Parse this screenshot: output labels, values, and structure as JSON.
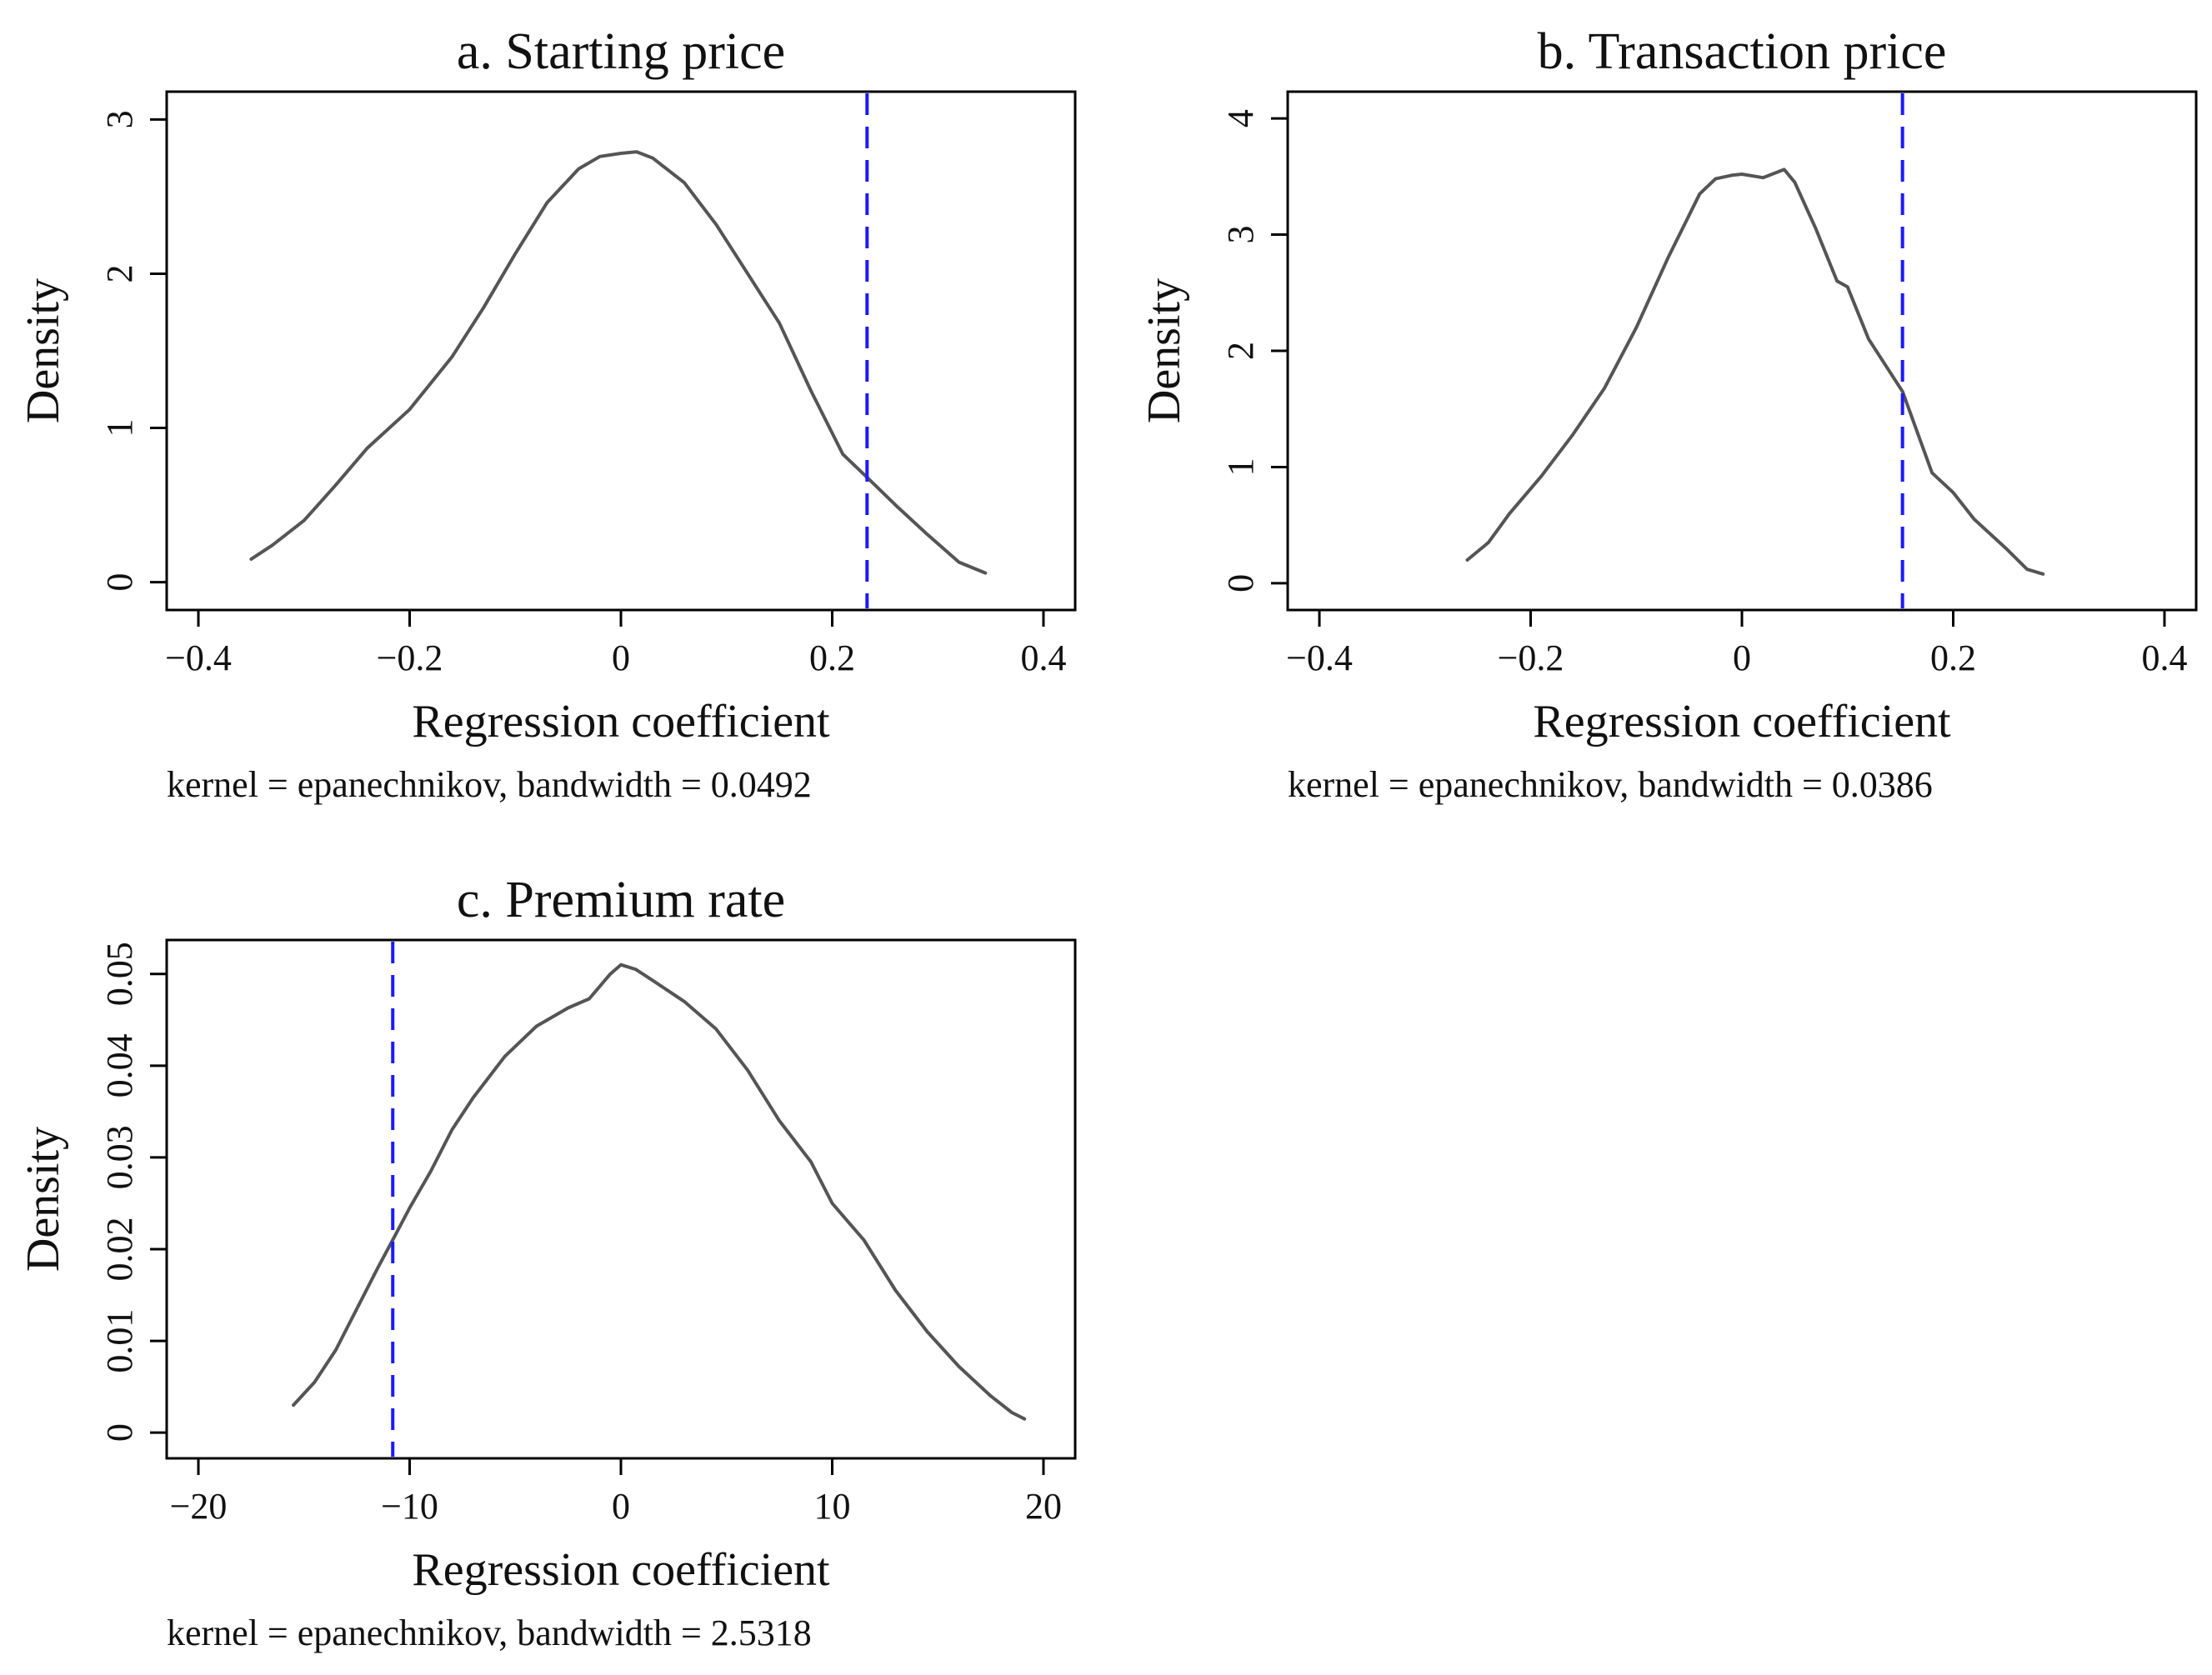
{
  "chart_data": [
    {
      "type": "line",
      "title": "a. Starting price",
      "xlabel": "Regression coefficient",
      "ylabel": "Density",
      "note": "kernel = epanechnikov, bandwidth = 0.0492",
      "xlim": [
        -0.43,
        0.43
      ],
      "ylim": [
        -0.18,
        3.18
      ],
      "xticks": [
        -0.4,
        -0.2,
        0,
        0.2,
        0.4
      ],
      "xtick_labels": [
        "−0.4",
        "−0.2",
        "0",
        "0.2",
        "0.4"
      ],
      "yticks": [
        0,
        1,
        2,
        3
      ],
      "ytick_labels": [
        "0",
        "1",
        "2",
        "3"
      ],
      "reference_line": {
        "x": 0.233,
        "color": "#1a1aff",
        "style": "dashed"
      },
      "series": [
        {
          "name": "density",
          "color": "#555555",
          "x": [
            -0.35,
            -0.33,
            -0.3,
            -0.27,
            -0.24,
            -0.2,
            -0.16,
            -0.13,
            -0.1,
            -0.07,
            -0.04,
            -0.02,
            0.0,
            0.015,
            0.03,
            0.06,
            0.09,
            0.12,
            0.15,
            0.18,
            0.21,
            0.233,
            0.26,
            0.29,
            0.32,
            0.345
          ],
          "y": [
            0.15,
            0.24,
            0.4,
            0.63,
            0.87,
            1.12,
            1.46,
            1.78,
            2.13,
            2.46,
            2.68,
            2.76,
            2.78,
            2.79,
            2.75,
            2.59,
            2.32,
            2.0,
            1.68,
            1.24,
            0.83,
            0.68,
            0.5,
            0.31,
            0.13,
            0.06
          ]
        }
      ]
    },
    {
      "type": "line",
      "title": "b. Transaction price",
      "xlabel": "Regression coefficient",
      "ylabel": "Density",
      "note": "kernel = epanechnikov, bandwidth = 0.0386",
      "xlim": [
        -0.43,
        0.43
      ],
      "ylim": [
        -0.23,
        4.23
      ],
      "xticks": [
        -0.4,
        -0.2,
        0,
        0.2,
        0.4
      ],
      "xtick_labels": [
        "−0.4",
        "−0.2",
        "0",
        "0.2",
        "0.4"
      ],
      "yticks": [
        0,
        1,
        2,
        3,
        4
      ],
      "ytick_labels": [
        "0",
        "1",
        "2",
        "3",
        "4"
      ],
      "reference_line": {
        "x": 0.152,
        "color": "#1a1aff",
        "style": "dashed"
      },
      "series": [
        {
          "name": "density",
          "color": "#555555",
          "x": [
            -0.26,
            -0.24,
            -0.22,
            -0.19,
            -0.16,
            -0.13,
            -0.1,
            -0.07,
            -0.04,
            -0.025,
            -0.01,
            0.0,
            0.02,
            0.04,
            0.05,
            0.07,
            0.09,
            0.1,
            0.12,
            0.152,
            0.18,
            0.2,
            0.22,
            0.25,
            0.27,
            0.285
          ],
          "y": [
            0.2,
            0.35,
            0.6,
            0.92,
            1.28,
            1.68,
            2.2,
            2.8,
            3.35,
            3.48,
            3.51,
            3.52,
            3.49,
            3.56,
            3.45,
            3.05,
            2.6,
            2.55,
            2.1,
            1.65,
            0.95,
            0.78,
            0.55,
            0.3,
            0.12,
            0.08
          ]
        }
      ]
    },
    {
      "type": "line",
      "title": "c. Premium rate",
      "xlabel": "Regression coefficient",
      "ylabel": "Density",
      "note": "kernel = epanechnikov, bandwidth = 2.5318",
      "xlim": [
        -21.5,
        21.5
      ],
      "ylim": [
        -0.0028,
        0.0537
      ],
      "xticks": [
        -20,
        -10,
        0,
        10,
        20
      ],
      "xtick_labels": [
        "−20",
        "−10",
        "0",
        "10",
        "20"
      ],
      "yticks": [
        0,
        0.01,
        0.02,
        0.03,
        0.04,
        0.05
      ],
      "ytick_labels": [
        "0",
        "0.01",
        "0.02",
        "0.03",
        "0.04",
        "0.05"
      ],
      "reference_line": {
        "x": -10.8,
        "color": "#1a1aff",
        "style": "dashed"
      },
      "series": [
        {
          "name": "density",
          "color": "#555555",
          "x": [
            -15.5,
            -14.5,
            -13.5,
            -12.5,
            -11.5,
            -10.8,
            -10.0,
            -9.0,
            -8.0,
            -7.0,
            -5.5,
            -4.0,
            -2.5,
            -1.5,
            -0.5,
            0.0,
            0.7,
            1.5,
            3.0,
            4.5,
            6.0,
            7.5,
            9.0,
            10.0,
            11.5,
            13.0,
            14.5,
            16.0,
            17.5,
            18.5,
            19.1
          ],
          "y": [
            0.003,
            0.0055,
            0.009,
            0.0135,
            0.018,
            0.021,
            0.0245,
            0.0285,
            0.033,
            0.0365,
            0.041,
            0.0443,
            0.0463,
            0.0473,
            0.05,
            0.051,
            0.0505,
            0.0493,
            0.047,
            0.044,
            0.0395,
            0.034,
            0.0295,
            0.025,
            0.021,
            0.0155,
            0.011,
            0.0072,
            0.004,
            0.0022,
            0.0015
          ]
        }
      ]
    }
  ]
}
